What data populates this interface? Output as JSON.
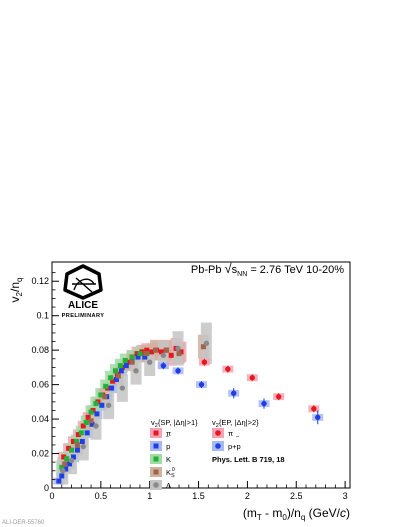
{
  "figure_id": "ALI-DER-55760",
  "logo": {
    "name": "ALICE",
    "status": "PRELIMINARY"
  },
  "chart_data": {
    "type": "scatter",
    "collision_label": "Pb-Pb √s_NN = 2.76 TeV 10-20%",
    "xlabel": "(m_T - m_0)/n_q (GeV/c)",
    "ylabel": "v_2/n_q",
    "xlim": [
      0,
      3.05
    ],
    "ylim": [
      0,
      0.13
    ],
    "x_ticks": [
      "0",
      "0.5",
      "1",
      "1.5",
      "2",
      "2.5",
      "3"
    ],
    "y_ticks": [
      "0",
      "0.02",
      "0.04",
      "0.06",
      "0.08",
      "0.1",
      "0.12"
    ],
    "grid": false,
    "legend_left_header": "v_2{SP, |Δη|>1}",
    "legend_right_header": "v_2{EP, |Δη|>2}",
    "reference": "Phys. Lett. B 719, 18",
    "series": [
      {
        "name": "π",
        "method": "SP",
        "marker": "square",
        "color": "#e8171e",
        "sys_color": "#f4a3b4",
        "x": [
          0.12,
          0.17,
          0.22,
          0.27,
          0.32,
          0.37,
          0.42,
          0.47,
          0.52,
          0.57,
          0.62,
          0.67,
          0.72,
          0.77,
          0.82,
          0.87,
          0.92,
          0.97,
          1.02,
          1.07,
          1.12,
          1.17,
          1.22,
          1.27,
          1.32
        ],
        "y": [
          0.018,
          0.023,
          0.027,
          0.031,
          0.036,
          0.041,
          0.045,
          0.05,
          0.054,
          0.058,
          0.062,
          0.066,
          0.07,
          0.073,
          0.076,
          0.078,
          0.079,
          0.08,
          0.079,
          0.08,
          0.079,
          0.08,
          0.077,
          0.081,
          0.079
        ],
        "sys": [
          0.003,
          0.003,
          0.003,
          0.003,
          0.003,
          0.003,
          0.003,
          0.003,
          0.003,
          0.003,
          0.003,
          0.003,
          0.003,
          0.003,
          0.004,
          0.004,
          0.004,
          0.004,
          0.005,
          0.005,
          0.005,
          0.005,
          0.006,
          0.006,
          0.006
        ]
      },
      {
        "name": "p̄",
        "method": "SP",
        "marker": "square",
        "color": "#1e3ee8",
        "sys_color": "#a9b8ee",
        "x": [
          0.07,
          0.1,
          0.14,
          0.18,
          0.22,
          0.26,
          0.31,
          0.36,
          0.41,
          0.46,
          0.51,
          0.56,
          0.61,
          0.66,
          0.71,
          0.76,
          0.82,
          0.88,
          0.95
        ],
        "y": [
          0.004,
          0.007,
          0.011,
          0.014,
          0.018,
          0.022,
          0.027,
          0.032,
          0.037,
          0.043,
          0.048,
          0.053,
          0.058,
          0.063,
          0.068,
          0.071,
          0.074,
          0.076,
          0.076
        ],
        "sys": [
          0.002,
          0.002,
          0.002,
          0.003,
          0.003,
          0.003,
          0.003,
          0.003,
          0.003,
          0.003,
          0.003,
          0.003,
          0.003,
          0.003,
          0.003,
          0.003,
          0.003,
          0.003,
          0.003
        ]
      },
      {
        "name": "K",
        "method": "SP",
        "marker": "square",
        "color": "#22b035",
        "sys_color": "#9fdca6",
        "x": [
          0.1,
          0.15,
          0.2,
          0.25,
          0.3,
          0.35,
          0.4,
          0.45,
          0.5,
          0.55,
          0.6,
          0.65,
          0.7,
          0.75,
          0.82,
          0.9,
          0.97
        ],
        "y": [
          0.012,
          0.017,
          0.022,
          0.027,
          0.032,
          0.038,
          0.044,
          0.049,
          0.054,
          0.059,
          0.064,
          0.068,
          0.071,
          0.074,
          0.076,
          0.078,
          0.078
        ],
        "sys": [
          0.004,
          0.004,
          0.004,
          0.004,
          0.004,
          0.004,
          0.004,
          0.004,
          0.004,
          0.004,
          0.004,
          0.004,
          0.004,
          0.004,
          0.004,
          0.004,
          0.004
        ]
      },
      {
        "name": "K_S^0",
        "method": "SP",
        "marker": "square",
        "color": "#a0644a",
        "sys_color": "#cfb29e",
        "x": [
          0.13,
          0.26,
          0.4,
          0.54,
          0.68,
          0.82,
          0.96,
          1.06,
          1.17,
          1.3,
          1.55
        ],
        "y": [
          0.014,
          0.025,
          0.039,
          0.053,
          0.065,
          0.073,
          0.078,
          0.08,
          0.08,
          0.078,
          0.082
        ],
        "sys": [
          0.004,
          0.004,
          0.005,
          0.005,
          0.005,
          0.005,
          0.005,
          0.006,
          0.006,
          0.006,
          0.007
        ]
      },
      {
        "name": "Λ",
        "method": "SP",
        "marker": "circle",
        "color": "#8a8a8a",
        "sys_color": "#c4c4c4",
        "x": [
          0.11,
          0.2,
          0.32,
          0.45,
          0.58,
          0.72,
          0.86,
          1.0,
          1.14,
          1.29,
          1.58
        ],
        "y": [
          0.01,
          0.016,
          0.024,
          0.036,
          0.048,
          0.058,
          0.068,
          0.073,
          0.077,
          0.081,
          0.084
        ],
        "sys": [
          0.008,
          0.008,
          0.008,
          0.008,
          0.008,
          0.008,
          0.008,
          0.008,
          0.008,
          0.01,
          0.012
        ]
      },
      {
        "name": "π",
        "method": "EP",
        "marker": "circle",
        "color": "#e8171e",
        "sys_color": "#f4a3b4",
        "x": [
          1.56,
          1.8,
          2.05,
          2.32,
          2.68
        ],
        "y": [
          0.073,
          0.069,
          0.064,
          0.053,
          0.046
        ],
        "stat": [
          0.002,
          0.002,
          0.002,
          0.002,
          0.002
        ],
        "sys": [
          0.002,
          0.002,
          0.002,
          0.002,
          0.002
        ]
      },
      {
        "name": "p+p̄",
        "method": "EP",
        "marker": "circle",
        "color": "#1e3ee8",
        "sys_color": "#a9b8ee",
        "x": [
          1.14,
          1.29,
          1.53,
          1.86,
          2.17,
          2.72
        ],
        "y": [
          0.071,
          0.068,
          0.06,
          0.055,
          0.049,
          0.041
        ],
        "stat": [
          0.002,
          0.002,
          0.002,
          0.003,
          0.003,
          0.004
        ],
        "sys": [
          0.002,
          0.002,
          0.002,
          0.002,
          0.002,
          0.002
        ]
      }
    ]
  }
}
